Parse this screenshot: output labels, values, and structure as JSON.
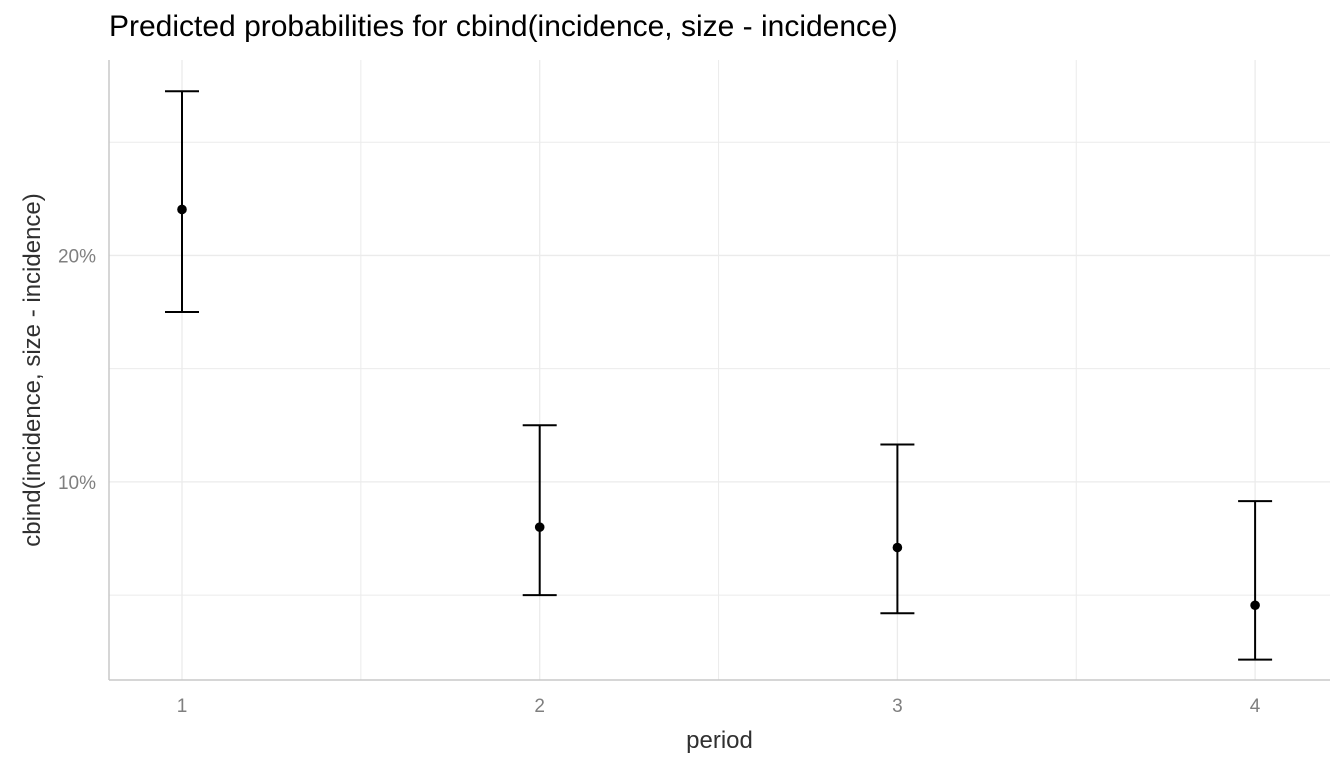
{
  "chart_data": {
    "type": "scatter",
    "title": "Predicted probabilities for cbind(incidence, size - incidence)",
    "xlabel": "period",
    "ylabel": "cbind(incidence, size - incidence)",
    "categories": [
      "1",
      "2",
      "3",
      "4"
    ],
    "series": [
      {
        "values": [
          0.2203,
          0.08,
          0.071,
          0.0455
        ],
        "lower": [
          0.175,
          0.05,
          0.042,
          0.0215
        ],
        "upper": [
          0.2725,
          0.125,
          0.1165,
          0.0915
        ]
      }
    ],
    "ylim": [
      0.0125,
      0.2863
    ],
    "yticks": [
      0.1,
      0.2
    ],
    "ytick_labels": [
      "10%",
      "20%"
    ],
    "grid": true,
    "legend": "none",
    "colors": {
      "points": "#000000",
      "grid": "#ebebeb",
      "axis": "#c8c8c8"
    }
  }
}
